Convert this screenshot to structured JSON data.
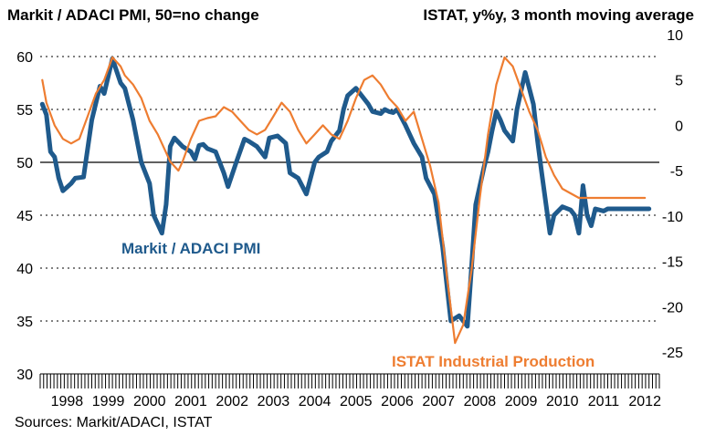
{
  "header": {
    "left_title": "Markit / ADACI PMI, 50=no change",
    "right_title": "ISTAT, y%y, 3 month moving average"
  },
  "source_note": "Sources: Markit/ADACI, ISTAT",
  "chart_data": {
    "type": "line",
    "title": "",
    "x_tick_labels": [
      "1998",
      "1999",
      "2000",
      "2001",
      "2002",
      "2003",
      "2004",
      "2005",
      "2006",
      "2007",
      "2008",
      "2009",
      "2010",
      "2011",
      "2012"
    ],
    "x_range": [
      1997.85,
      2012.85
    ],
    "left_axis": {
      "ticks": [
        "60",
        "55",
        "50",
        "45",
        "40",
        "35",
        "30"
      ],
      "range": [
        30,
        60
      ]
    },
    "right_axis": {
      "ticks": [
        "10",
        "5",
        "0",
        "-5",
        "-10",
        "-15",
        "-20",
        "-25"
      ],
      "range": [
        -25,
        10
      ]
    },
    "grid": "dashed horizontal",
    "reference_line": {
      "axis": "left",
      "value": 50
    },
    "colors": {
      "pmi": "#1f5a8c",
      "ip": "#ee7d31",
      "grid": "#000000"
    },
    "series": [
      {
        "name": "Markit / ADACI PMI",
        "axis": "left",
        "color": "#1f5a8c",
        "label_position": "below-left",
        "x": [
          1997.9,
          1998.0,
          1998.1,
          1998.2,
          1998.3,
          1998.4,
          1998.6,
          1998.7,
          1998.9,
          1999.1,
          1999.3,
          1999.4,
          1999.6,
          1999.8,
          1999.9,
          2000.0,
          2000.1,
          2000.3,
          2000.5,
          2000.6,
          2000.8,
          2000.9,
          2001.0,
          2001.1,
          2001.3,
          2001.5,
          2001.6,
          2001.7,
          2001.8,
          2001.9,
          2002.1,
          2002.3,
          2002.4,
          2002.6,
          2002.8,
          2002.9,
          2003.1,
          2003.3,
          2003.4,
          2003.6,
          2003.8,
          2003.9,
          2004.1,
          2004.3,
          2004.5,
          2004.6,
          2004.8,
          2004.9,
          2005.1,
          2005.2,
          2005.3,
          2005.5,
          2005.6,
          2005.8,
          2005.9,
          2006.1,
          2006.2,
          2006.3,
          2006.4,
          2006.5,
          2006.7,
          2006.9,
          2007.1,
          2007.2,
          2007.4,
          2007.6,
          2007.8,
          2008.0,
          2008.2,
          2008.3,
          2008.4,
          2008.6,
          2008.7,
          2008.8,
          2008.9,
          2009.0,
          2009.1,
          2009.3,
          2009.4,
          2009.6,
          2009.8,
          2009.9,
          2010.0,
          2010.2,
          2010.3,
          2010.5,
          2010.7,
          2010.8,
          2010.9,
          2011.0,
          2011.1,
          2011.2,
          2011.3,
          2011.5,
          2011.6,
          2011.7,
          2011.8,
          2011.9,
          2012.1,
          2012.2,
          2012.3,
          2012.4,
          2012.5,
          2012.6
        ],
        "y": [
          55.5,
          54.5,
          51.0,
          50.5,
          48.5,
          47.3,
          48.0,
          48.5,
          48.6,
          54.0,
          57.2,
          56.5,
          59.8,
          57.5,
          57.0,
          55.5,
          54.0,
          50.0,
          48.0,
          45.0,
          43.3,
          46.0,
          51.5,
          52.3,
          51.5,
          51.0,
          50.3,
          51.6,
          51.7,
          51.3,
          51.0,
          49.0,
          47.7,
          50.0,
          52.2,
          52.0,
          51.5,
          50.5,
          52.3,
          52.5,
          51.8,
          49.0,
          48.5,
          47.0,
          50.0,
          50.5,
          51.0,
          52.0,
          53.0,
          55.0,
          56.3,
          57.0,
          56.5,
          55.5,
          54.8,
          54.6,
          55.0,
          54.8,
          54.7,
          55.0,
          53.5,
          51.8,
          50.5,
          48.5,
          47.0,
          42.0,
          35.0,
          35.5,
          34.5,
          40.0,
          46.0,
          49.5,
          51.0,
          53.0,
          54.8,
          54.0,
          53.0,
          52.0,
          55.0,
          58.5,
          55.5,
          52.0,
          49.0,
          43.3,
          45.0,
          45.8,
          45.5,
          45.0,
          43.3,
          47.8,
          45.0,
          44.0,
          45.6,
          45.4,
          45.6,
          45.6,
          45.6,
          45.6,
          45.6,
          45.6,
          45.6,
          45.6,
          45.6,
          45.6
        ]
      },
      {
        "name": "ISTAT Industrial Production",
        "axis": "right",
        "color": "#ee7d31",
        "label_position": "bottom-right",
        "x": [
          1997.9,
          1998.0,
          1998.2,
          1998.4,
          1998.6,
          1998.8,
          1999.0,
          1999.2,
          1999.4,
          1999.6,
          1999.8,
          1999.9,
          2000.1,
          2000.3,
          2000.5,
          2000.7,
          2000.8,
          2001.0,
          2001.2,
          2001.3,
          2001.5,
          2001.7,
          2001.9,
          2002.1,
          2002.3,
          2002.5,
          2002.7,
          2002.9,
          2003.1,
          2003.3,
          2003.5,
          2003.7,
          2003.9,
          2004.1,
          2004.3,
          2004.5,
          2004.7,
          2004.9,
          2005.1,
          2005.3,
          2005.5,
          2005.7,
          2005.9,
          2006.1,
          2006.3,
          2006.5,
          2006.7,
          2006.9,
          2007.1,
          2007.3,
          2007.5,
          2007.7,
          2007.9,
          2008.1,
          2008.3,
          2008.5,
          2008.7,
          2008.9,
          2009.1,
          2009.3,
          2009.5,
          2009.7,
          2009.9,
          2010.1,
          2010.3,
          2010.5,
          2010.7,
          2010.9,
          2011.1,
          2011.3,
          2011.5,
          2011.7,
          2011.9,
          2012.1,
          2012.3,
          2012.5
        ],
        "y": [
          5.0,
          2.5,
          0.0,
          -1.5,
          -2.0,
          -1.5,
          1.0,
          3.5,
          5.0,
          7.5,
          6.5,
          5.5,
          4.5,
          3.0,
          0.5,
          -1.0,
          -2.0,
          -4.0,
          -5.0,
          -4.0,
          -1.5,
          0.5,
          0.8,
          1.0,
          2.0,
          1.5,
          0.5,
          -0.5,
          -1.0,
          -0.5,
          1.0,
          2.5,
          1.5,
          -0.5,
          -2.0,
          -1.0,
          0.0,
          -1.0,
          -1.5,
          0.5,
          3.0,
          5.0,
          5.5,
          4.5,
          3.0,
          2.0,
          0.5,
          1.5,
          -1.5,
          -4.5,
          -8.5,
          -16.5,
          -24.0,
          -22.0,
          -16.0,
          -8.0,
          -1.0,
          4.5,
          7.5,
          6.5,
          4.0,
          1.5,
          -0.5,
          -3.5,
          -5.5,
          -7.0,
          -7.5,
          -8.0,
          -8.0,
          -8.0,
          -8.0,
          -8.0,
          -8.0,
          -8.0,
          -8.0,
          -8.0
        ]
      }
    ]
  }
}
